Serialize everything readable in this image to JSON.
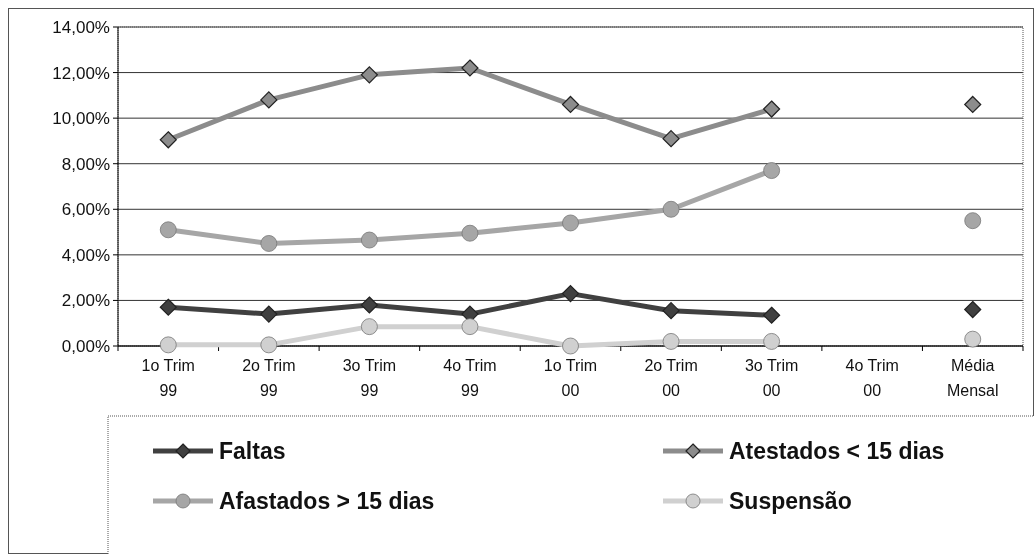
{
  "chart_data": {
    "type": "line",
    "categories": [
      "1o Trim 99",
      "2o Trim 99",
      "3o Trim 99",
      "4o Trim 99",
      "1o Trim 00",
      "2o Trim 00",
      "3o Trim 00",
      "4o Trim 00",
      "Média Mensal"
    ],
    "series": [
      {
        "name": "Faltas",
        "color": "#404040",
        "marker": "diamond",
        "values": [
          1.7,
          1.4,
          1.8,
          1.4,
          2.3,
          1.55,
          1.35,
          null,
          1.6
        ]
      },
      {
        "name": "Atestados < 15  dias",
        "color": "#8c8c8c",
        "marker": "diamond",
        "values": [
          9.05,
          10.8,
          11.9,
          12.2,
          10.6,
          9.1,
          10.4,
          null,
          10.6
        ]
      },
      {
        "name": "Afastados > 15 dias",
        "color": "#a6a6a6",
        "marker": "circle",
        "values": [
          5.1,
          4.5,
          4.65,
          4.95,
          5.4,
          6.0,
          7.7,
          null,
          5.5
        ]
      },
      {
        "name": "Suspensão",
        "color": "#d0d0d0",
        "marker": "circle",
        "values": [
          0.05,
          0.05,
          0.85,
          0.85,
          0.0,
          0.2,
          0.2,
          null,
          0.3
        ]
      }
    ],
    "ylim": [
      0,
      14
    ],
    "yticks": [
      {
        "value": 0,
        "label": "0,00%"
      },
      {
        "value": 2,
        "label": "2,00%"
      },
      {
        "value": 4,
        "label": "4,00%"
      },
      {
        "value": 6,
        "label": "6,00%"
      },
      {
        "value": 8,
        "label": "8,00%"
      },
      {
        "value": 10,
        "label": "10,00%"
      },
      {
        "value": 12,
        "label": "12,00%"
      },
      {
        "value": 14,
        "label": "14,00%"
      }
    ],
    "grid": "y",
    "legend": "bottom",
    "line_style": "solid"
  }
}
